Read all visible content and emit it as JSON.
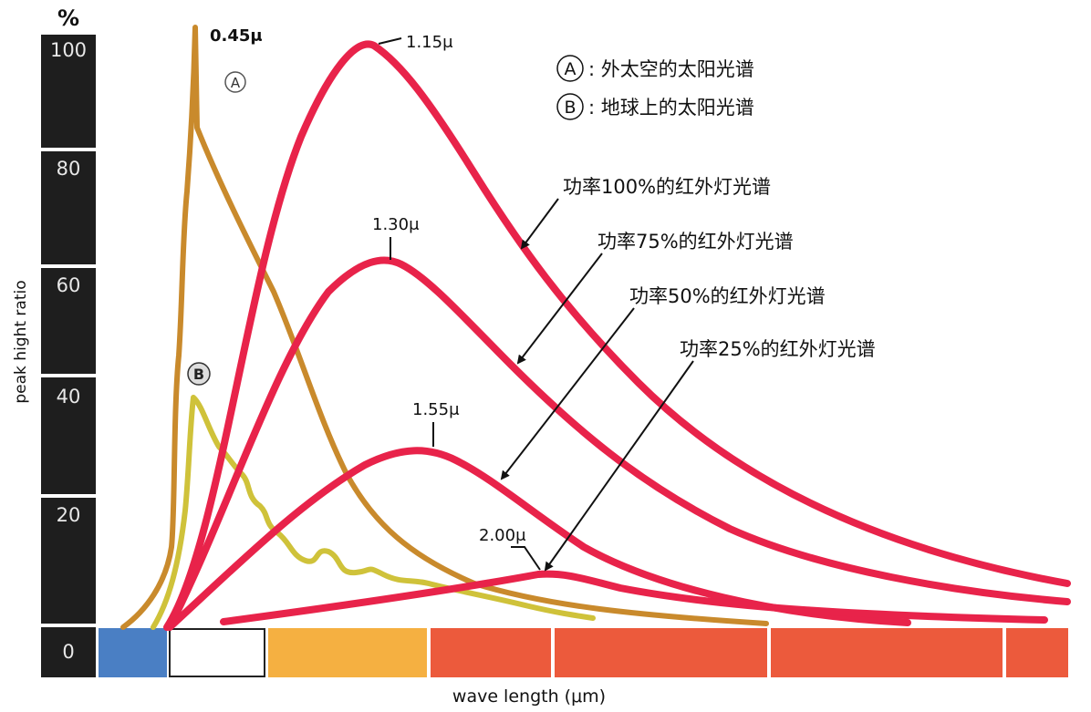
{
  "chart_data": {
    "type": "line",
    "y_unit": "%",
    "ylabel": "peak hight ratio",
    "xlabel": "wave length (μm)",
    "ylim": [
      0,
      100
    ],
    "y_ticks": [
      "100",
      "80",
      "60",
      "40",
      "20",
      "0"
    ],
    "colors": {
      "solar_space": "#c98a2c",
      "solar_earth": "#cfc23a",
      "ir_lamp": "#e8234a",
      "axis_bar": "#1e1e1e",
      "band_blue": "#4a7fc4",
      "band_orange": "#f5b041",
      "band_red": "#ec5a3c"
    },
    "legend": [
      {
        "marker": "A",
        "text": ": 外太空的太阳光谱"
      },
      {
        "marker": "B",
        "text": ": 地球上的太阳光谱"
      }
    ],
    "curve_markers": [
      {
        "marker": "A",
        "series": "solar_space"
      },
      {
        "marker": "B",
        "series": "solar_earth"
      }
    ],
    "series": [
      {
        "key": "solar_space",
        "marker": "A",
        "peak_label": "0.45μ",
        "peak_value": 100
      },
      {
        "key": "solar_earth",
        "marker": "B",
        "peak_value": 40
      },
      {
        "key": "ir100",
        "name": "功率100%的红外灯光谱",
        "peak_label": "1.15μ",
        "peak_value": 98
      },
      {
        "key": "ir75",
        "name": "功率75%的红外灯光谱",
        "peak_label": "1.30μ",
        "peak_value": 62
      },
      {
        "key": "ir50",
        "name": "功率50%的红外灯光谱",
        "peak_label": "1.55μ",
        "peak_value": 30
      },
      {
        "key": "ir25",
        "name": "功率25%的红外灯光谱",
        "peak_label": "2.00μ",
        "peak_value": 10
      }
    ]
  }
}
